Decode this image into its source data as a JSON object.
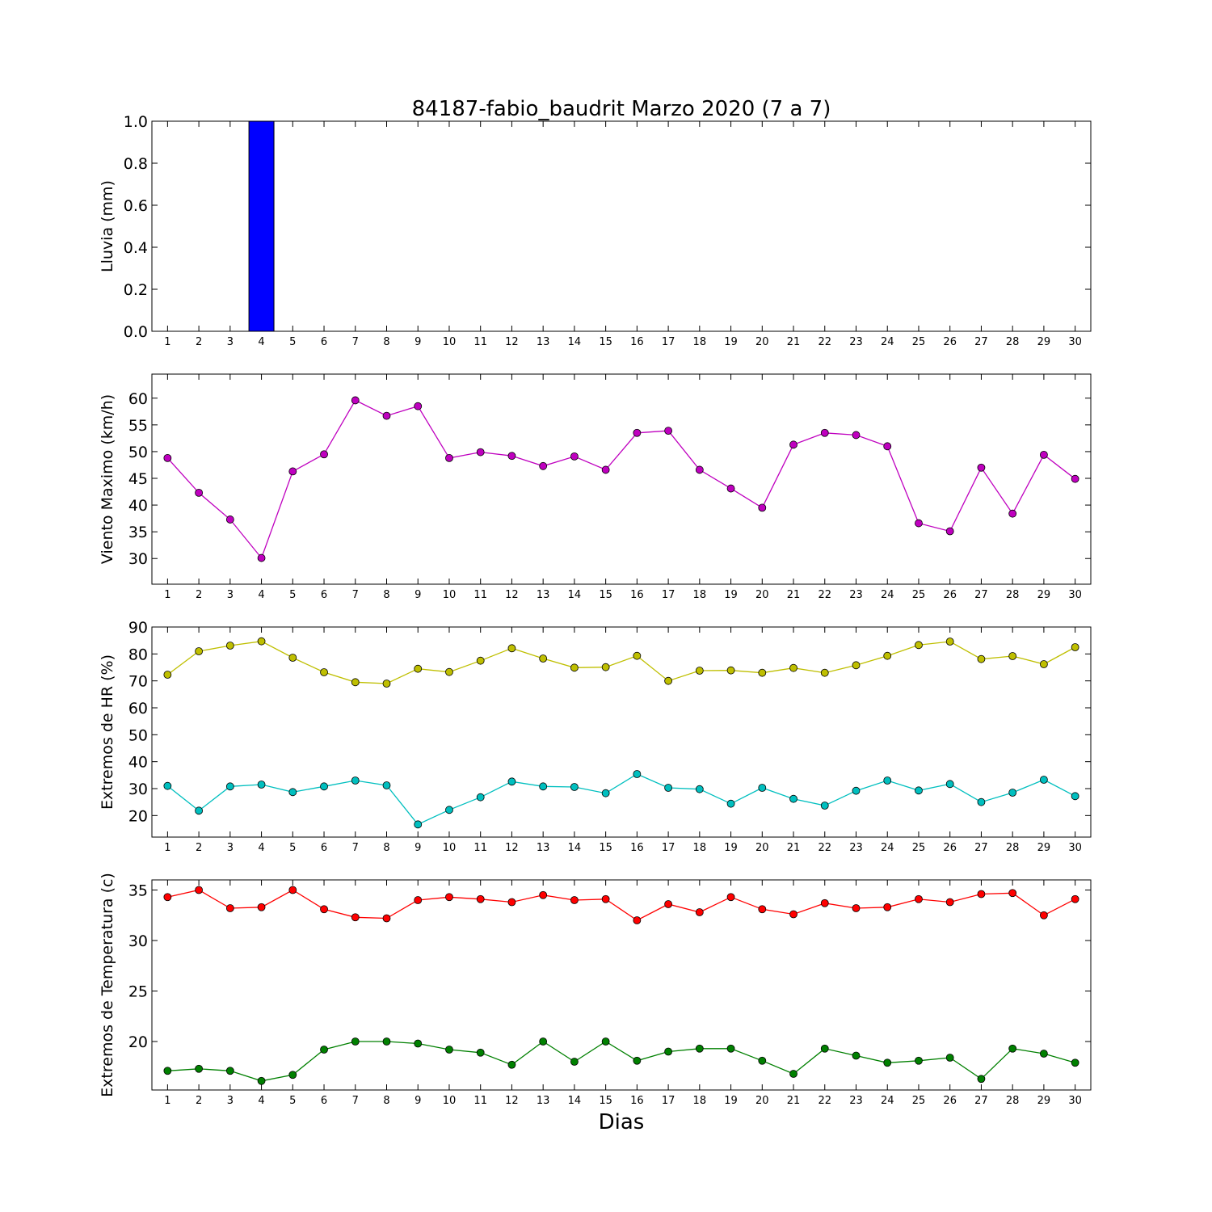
{
  "figure": {
    "title": "84187-fabio_baudrit Marzo 2020  (7 a 7)",
    "xlabel": "Dias"
  },
  "chart_data": [
    {
      "type": "bar",
      "ylabel": "Lluvia (mm)",
      "x": [
        1,
        2,
        3,
        4,
        5,
        6,
        7,
        8,
        9,
        10,
        11,
        12,
        13,
        14,
        15,
        16,
        17,
        18,
        19,
        20,
        21,
        22,
        23,
        24,
        25,
        26,
        27,
        28,
        29,
        30
      ],
      "values": [
        0,
        0,
        0,
        1.0,
        0,
        0,
        0,
        0,
        0,
        0,
        0,
        0,
        0,
        0,
        0,
        0,
        0,
        0,
        0,
        0,
        0,
        0,
        0,
        0,
        0,
        0,
        0,
        0,
        0,
        0
      ],
      "ylim": [
        0,
        1.0
      ],
      "yticks": [
        "0.0",
        "0.2",
        "0.4",
        "0.6",
        "0.8",
        "1.0"
      ],
      "color": "#0000ff"
    },
    {
      "type": "line",
      "ylabel": "Viento Maximo (km/h)",
      "x": [
        1,
        2,
        3,
        4,
        5,
        6,
        7,
        8,
        9,
        10,
        11,
        12,
        13,
        14,
        15,
        16,
        17,
        18,
        19,
        20,
        21,
        22,
        23,
        24,
        25,
        26,
        27,
        28,
        29,
        30
      ],
      "series": [
        {
          "color": "#bf00bf",
          "values": [
            48.8,
            42.3,
            37.3,
            30.1,
            46.3,
            49.5,
            59.6,
            56.7,
            58.5,
            48.8,
            49.9,
            49.2,
            47.3,
            49.1,
            46.6,
            53.5,
            53.9,
            46.6,
            43.1,
            39.5,
            51.3,
            53.5,
            53.1,
            51.0,
            36.6,
            35.1,
            47.0,
            38.4,
            49.4,
            44.9
          ]
        }
      ],
      "ylim": [
        25.2,
        64.5
      ],
      "yticks": [
        "30",
        "35",
        "40",
        "45",
        "50",
        "55",
        "60"
      ]
    },
    {
      "type": "line",
      "ylabel": "Extremos de HR (%)",
      "x": [
        1,
        2,
        3,
        4,
        5,
        6,
        7,
        8,
        9,
        10,
        11,
        12,
        13,
        14,
        15,
        16,
        17,
        18,
        19,
        20,
        21,
        22,
        23,
        24,
        25,
        26,
        27,
        28,
        29,
        30
      ],
      "series": [
        {
          "color": "#bfbf00",
          "values": [
            72.3,
            81.0,
            83.1,
            84.7,
            78.6,
            73.2,
            69.5,
            69.0,
            74.5,
            73.3,
            77.5,
            82.1,
            78.3,
            74.9,
            75.1,
            79.3,
            70.0,
            73.8,
            73.9,
            73.0,
            74.8,
            73.0,
            75.8,
            79.3,
            83.3,
            84.6,
            78.1,
            79.2,
            76.2,
            82.5
          ]
        },
        {
          "color": "#00bfbf",
          "values": [
            31.0,
            21.8,
            30.8,
            31.5,
            28.7,
            30.8,
            33.0,
            31.2,
            16.7,
            22.1,
            26.8,
            32.6,
            30.8,
            30.6,
            28.3,
            35.4,
            30.3,
            29.8,
            24.4,
            30.3,
            26.2,
            23.7,
            29.2,
            33.0,
            29.3,
            31.7,
            25.0,
            28.5,
            33.3,
            27.2
          ]
        }
      ],
      "ylim": [
        12,
        90
      ],
      "yticks": [
        "20",
        "30",
        "40",
        "50",
        "60",
        "70",
        "80",
        "90"
      ]
    },
    {
      "type": "line",
      "ylabel": "Extremos de Temperatura (c)",
      "x": [
        1,
        2,
        3,
        4,
        5,
        6,
        7,
        8,
        9,
        10,
        11,
        12,
        13,
        14,
        15,
        16,
        17,
        18,
        19,
        20,
        21,
        22,
        23,
        24,
        25,
        26,
        27,
        28,
        29,
        30
      ],
      "series": [
        {
          "color": "#ff0000",
          "values": [
            34.3,
            35.0,
            33.2,
            33.3,
            35.0,
            33.1,
            32.3,
            32.2,
            34.0,
            34.3,
            34.1,
            33.8,
            34.5,
            34.0,
            34.1,
            32.0,
            33.6,
            32.8,
            34.3,
            33.1,
            32.6,
            33.7,
            33.2,
            33.3,
            34.1,
            33.8,
            34.6,
            34.7,
            32.5,
            34.1
          ]
        },
        {
          "color": "#008000",
          "values": [
            17.1,
            17.3,
            17.1,
            16.1,
            16.7,
            19.2,
            20.0,
            20.0,
            19.8,
            19.2,
            18.9,
            17.7,
            20.0,
            18.0,
            20.0,
            18.1,
            19.0,
            19.3,
            19.3,
            18.1,
            16.8,
            19.3,
            18.6,
            17.9,
            18.1,
            18.4,
            16.3,
            19.3,
            18.8,
            17.9
          ]
        }
      ],
      "ylim": [
        15.2,
        36.0
      ],
      "yticks": [
        "20",
        "25",
        "30",
        "35"
      ]
    }
  ]
}
